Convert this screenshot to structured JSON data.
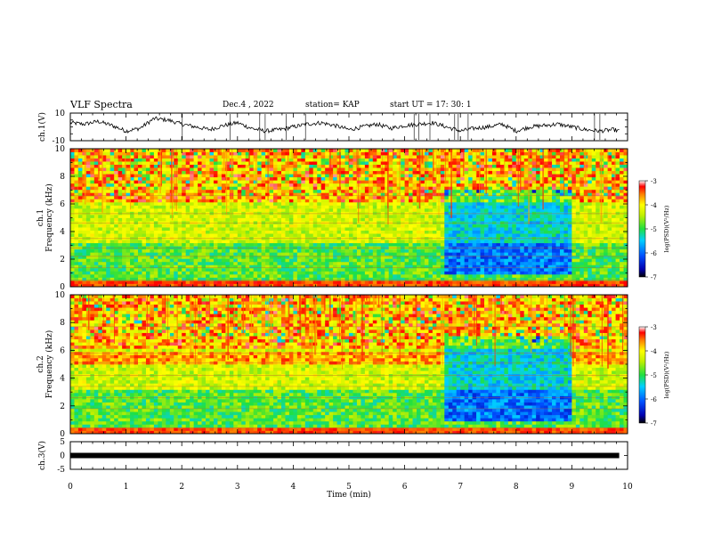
{
  "header": {
    "title": "VLF Spectra",
    "date": "Dec.4 , 2022",
    "station": "station= KAP",
    "start": "start UT = 17: 30: 1"
  },
  "colorbar": {
    "ticks": [
      "-3",
      "-4",
      "-5",
      "-6",
      "-7"
    ],
    "label": "log(PSD)(V²/Hz)"
  },
  "chart_data": [
    {
      "type": "line",
      "ylabel": "ch.1(V)",
      "ylim": [
        -10,
        10
      ],
      "yticks": [
        "10",
        "-10"
      ],
      "xlim": [
        0,
        10
      ],
      "x": [
        0,
        0.25,
        0.5,
        0.75,
        1,
        1.25,
        1.5,
        1.75,
        2,
        2.25,
        2.5,
        2.75,
        3,
        3.25,
        3.5,
        3.75,
        4,
        4.25,
        4.5,
        4.75,
        5,
        5.25,
        5.5,
        5.75,
        6,
        6.25,
        6.5,
        6.75,
        7,
        7.25,
        7.5,
        7.75,
        8,
        8.25,
        8.5,
        8.75,
        9,
        9.25,
        9.5,
        9.75,
        9.85
      ],
      "values": [
        3,
        2,
        4,
        1,
        -3,
        -1,
        6,
        5,
        2,
        0,
        -2,
        1,
        3,
        -1,
        -3,
        -2,
        0,
        2,
        3,
        1,
        -2,
        0,
        2,
        -1,
        1,
        2,
        3,
        0,
        -3,
        -1,
        0,
        2,
        -3,
        0,
        1,
        2,
        0,
        -2,
        -3,
        -2,
        -3
      ]
    },
    {
      "type": "heatmap",
      "title": "",
      "ylabel": "ch.1\nFrequency (kHz)",
      "yticks": [
        "0",
        "2",
        "4",
        "6",
        "8",
        "10"
      ],
      "ylim": [
        0,
        10
      ],
      "xlim": [
        0,
        10
      ],
      "colorbar_range": [
        -7,
        -3
      ]
    },
    {
      "type": "heatmap",
      "title": "",
      "ylabel": "ch.2\nFrequency (kHz)",
      "yticks": [
        "0",
        "2",
        "4",
        "6",
        "8",
        "10"
      ],
      "ylim": [
        0,
        10
      ],
      "xlim": [
        0,
        10
      ],
      "colorbar_range": [
        -7,
        -3
      ]
    },
    {
      "type": "line",
      "ylabel": "ch.3(V)",
      "ylim": [
        -5,
        5
      ],
      "yticks": [
        "5",
        "0",
        "-5"
      ],
      "xlim": [
        0,
        10
      ],
      "x": [
        0,
        9.85
      ],
      "values": [
        0,
        0
      ]
    }
  ],
  "xaxis": {
    "label": "Time (min)",
    "ticks": [
      "0",
      "1",
      "2",
      "3",
      "4",
      "5",
      "6",
      "7",
      "8",
      "9",
      "10"
    ]
  }
}
